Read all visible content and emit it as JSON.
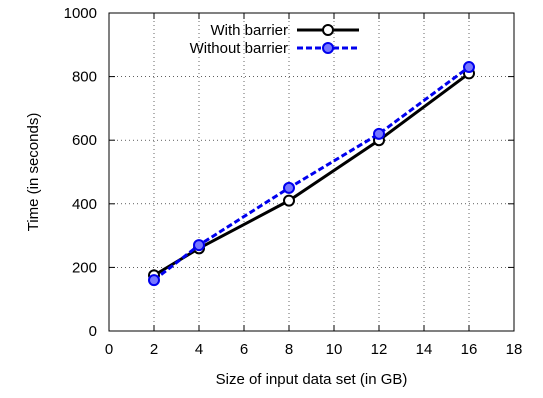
{
  "chart_data": {
    "type": "line",
    "title": "",
    "xlabel": "Size of input data set (in GB)",
    "ylabel": "Time (in seconds)",
    "xlim": [
      0,
      18
    ],
    "ylim": [
      0,
      1000
    ],
    "xticks": [
      0,
      2,
      4,
      6,
      8,
      10,
      12,
      14,
      16,
      18
    ],
    "yticks": [
      0,
      200,
      400,
      600,
      800,
      1000
    ],
    "grid": true,
    "legend_position": "top-left",
    "series": [
      {
        "name": "With barrier",
        "color": "#000000",
        "line_style": "solid",
        "marker": "open-circle",
        "x": [
          2,
          4,
          8,
          12,
          16
        ],
        "y": [
          175,
          260,
          410,
          600,
          810
        ]
      },
      {
        "name": "Without barrier",
        "color": "#0000ee",
        "line_style": "dashed",
        "marker": "open-circle",
        "x": [
          2,
          4,
          8,
          12,
          16
        ],
        "y": [
          160,
          270,
          450,
          620,
          830
        ]
      }
    ]
  }
}
